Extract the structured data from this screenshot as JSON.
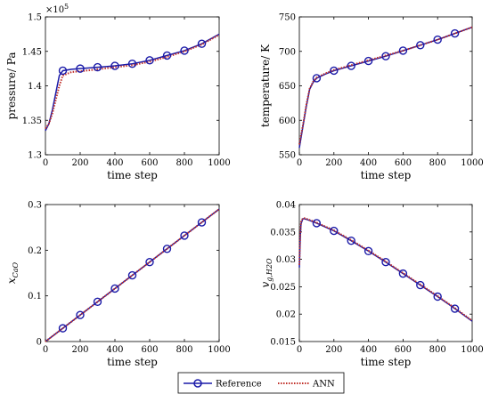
{
  "chart_data": [
    {
      "type": "line",
      "ylabel": "pressure/ Pa",
      "xlabel": "time step",
      "exponent_label": "×10",
      "exponent_power": "5",
      "xlim": [
        0,
        1000
      ],
      "ylim": [
        1.3,
        1.5
      ],
      "xticks": [
        "0",
        "200",
        "400",
        "600",
        "800",
        "1000"
      ],
      "yticks": [
        "1.3",
        "1.35",
        "1.4",
        "1.45",
        "1.5"
      ],
      "series": [
        {
          "name": "Reference",
          "x": [
            0,
            20,
            40,
            60,
            80,
            100,
            150,
            200,
            300,
            400,
            500,
            600,
            700,
            800,
            900,
            1000
          ],
          "y": [
            1.335,
            1.345,
            1.365,
            1.39,
            1.415,
            1.422,
            1.424,
            1.425,
            1.427,
            1.429,
            1.432,
            1.437,
            1.444,
            1.451,
            1.461,
            1.475
          ]
        },
        {
          "name": "ANN",
          "x": [
            0,
            20,
            40,
            60,
            80,
            100,
            150,
            200,
            300,
            400,
            500,
            600,
            700,
            800,
            900,
            1000
          ],
          "y": [
            1.338,
            1.345,
            1.36,
            1.38,
            1.4,
            1.415,
            1.42,
            1.421,
            1.424,
            1.427,
            1.43,
            1.435,
            1.442,
            1.45,
            1.46,
            1.474
          ]
        }
      ],
      "markers_x": [
        100,
        200,
        300,
        400,
        500,
        600,
        700,
        800,
        900
      ]
    },
    {
      "type": "line",
      "ylabel": "temperature/ K",
      "xlabel": "time step",
      "xlim": [
        0,
        1000
      ],
      "ylim": [
        550,
        750
      ],
      "xticks": [
        "0",
        "200",
        "400",
        "600",
        "800",
        "1000"
      ],
      "yticks": [
        "550",
        "600",
        "650",
        "700",
        "750"
      ],
      "series": [
        {
          "name": "Reference",
          "x": [
            0,
            20,
            40,
            60,
            80,
            100,
            150,
            200,
            300,
            400,
            500,
            600,
            700,
            800,
            900,
            1000
          ],
          "y": [
            560,
            590,
            620,
            645,
            655,
            661,
            667,
            672,
            679,
            686,
            693,
            701,
            709,
            717,
            726,
            735
          ]
        },
        {
          "name": "ANN",
          "x": [
            0,
            20,
            40,
            60,
            80,
            100,
            150,
            200,
            300,
            400,
            500,
            600,
            700,
            800,
            900,
            1000
          ],
          "y": [
            565,
            592,
            622,
            646,
            656,
            662,
            668,
            673,
            680,
            687,
            694,
            701,
            709,
            717,
            726,
            735
          ]
        }
      ],
      "markers_x": [
        100,
        200,
        300,
        400,
        500,
        600,
        700,
        800,
        900
      ]
    },
    {
      "type": "line",
      "ylabel_main": "x",
      "ylabel_sub": "CaO",
      "xlabel": "time step",
      "xlim": [
        0,
        1000
      ],
      "ylim": [
        0,
        0.3
      ],
      "xticks": [
        "0",
        "200",
        "400",
        "600",
        "800",
        "1000"
      ],
      "yticks": [
        "0",
        "0.1",
        "0.2",
        "0.3"
      ],
      "series": [
        {
          "name": "Reference",
          "x": [
            0,
            1000
          ],
          "y": [
            0,
            0.29
          ]
        },
        {
          "name": "ANN",
          "x": [
            0,
            1000
          ],
          "y": [
            0,
            0.29
          ]
        }
      ],
      "markers_x": [
        100,
        200,
        300,
        400,
        500,
        600,
        700,
        800,
        900
      ]
    },
    {
      "type": "line",
      "ylabel_main": "v",
      "ylabel_sub": "g,H2O",
      "xlabel": "time step",
      "xlim": [
        0,
        1000
      ],
      "ylim": [
        0.015,
        0.04
      ],
      "xticks": [
        "0",
        "200",
        "400",
        "600",
        "800",
        "1000"
      ],
      "yticks": [
        "0.015",
        "0.02",
        "0.025",
        "0.03",
        "0.035",
        "0.04"
      ],
      "series": [
        {
          "name": "Reference",
          "x": [
            0,
            5,
            10,
            20,
            30,
            50,
            100,
            200,
            300,
            400,
            500,
            600,
            700,
            800,
            900,
            1000
          ],
          "y": [
            0.0285,
            0.034,
            0.0365,
            0.0374,
            0.0374,
            0.0372,
            0.0366,
            0.0352,
            0.0334,
            0.0315,
            0.0295,
            0.0274,
            0.0253,
            0.0232,
            0.021,
            0.0187
          ]
        },
        {
          "name": "ANN",
          "x": [
            0,
            5,
            10,
            20,
            30,
            50,
            100,
            200,
            300,
            400,
            500,
            600,
            700,
            800,
            900,
            1000
          ],
          "y": [
            0.029,
            0.0345,
            0.0368,
            0.0375,
            0.0375,
            0.0373,
            0.0367,
            0.0353,
            0.0335,
            0.0316,
            0.0296,
            0.0275,
            0.0254,
            0.0233,
            0.0211,
            0.0188
          ]
        }
      ],
      "markers_x": [
        100,
        200,
        300,
        400,
        500,
        600,
        700,
        800,
        900
      ]
    }
  ],
  "legend": {
    "reference_label": "Reference",
    "ann_label": "ANN"
  },
  "colors": {
    "reference": "#1a1aa8",
    "ann": "#c0302a",
    "axis": "#000000"
  }
}
